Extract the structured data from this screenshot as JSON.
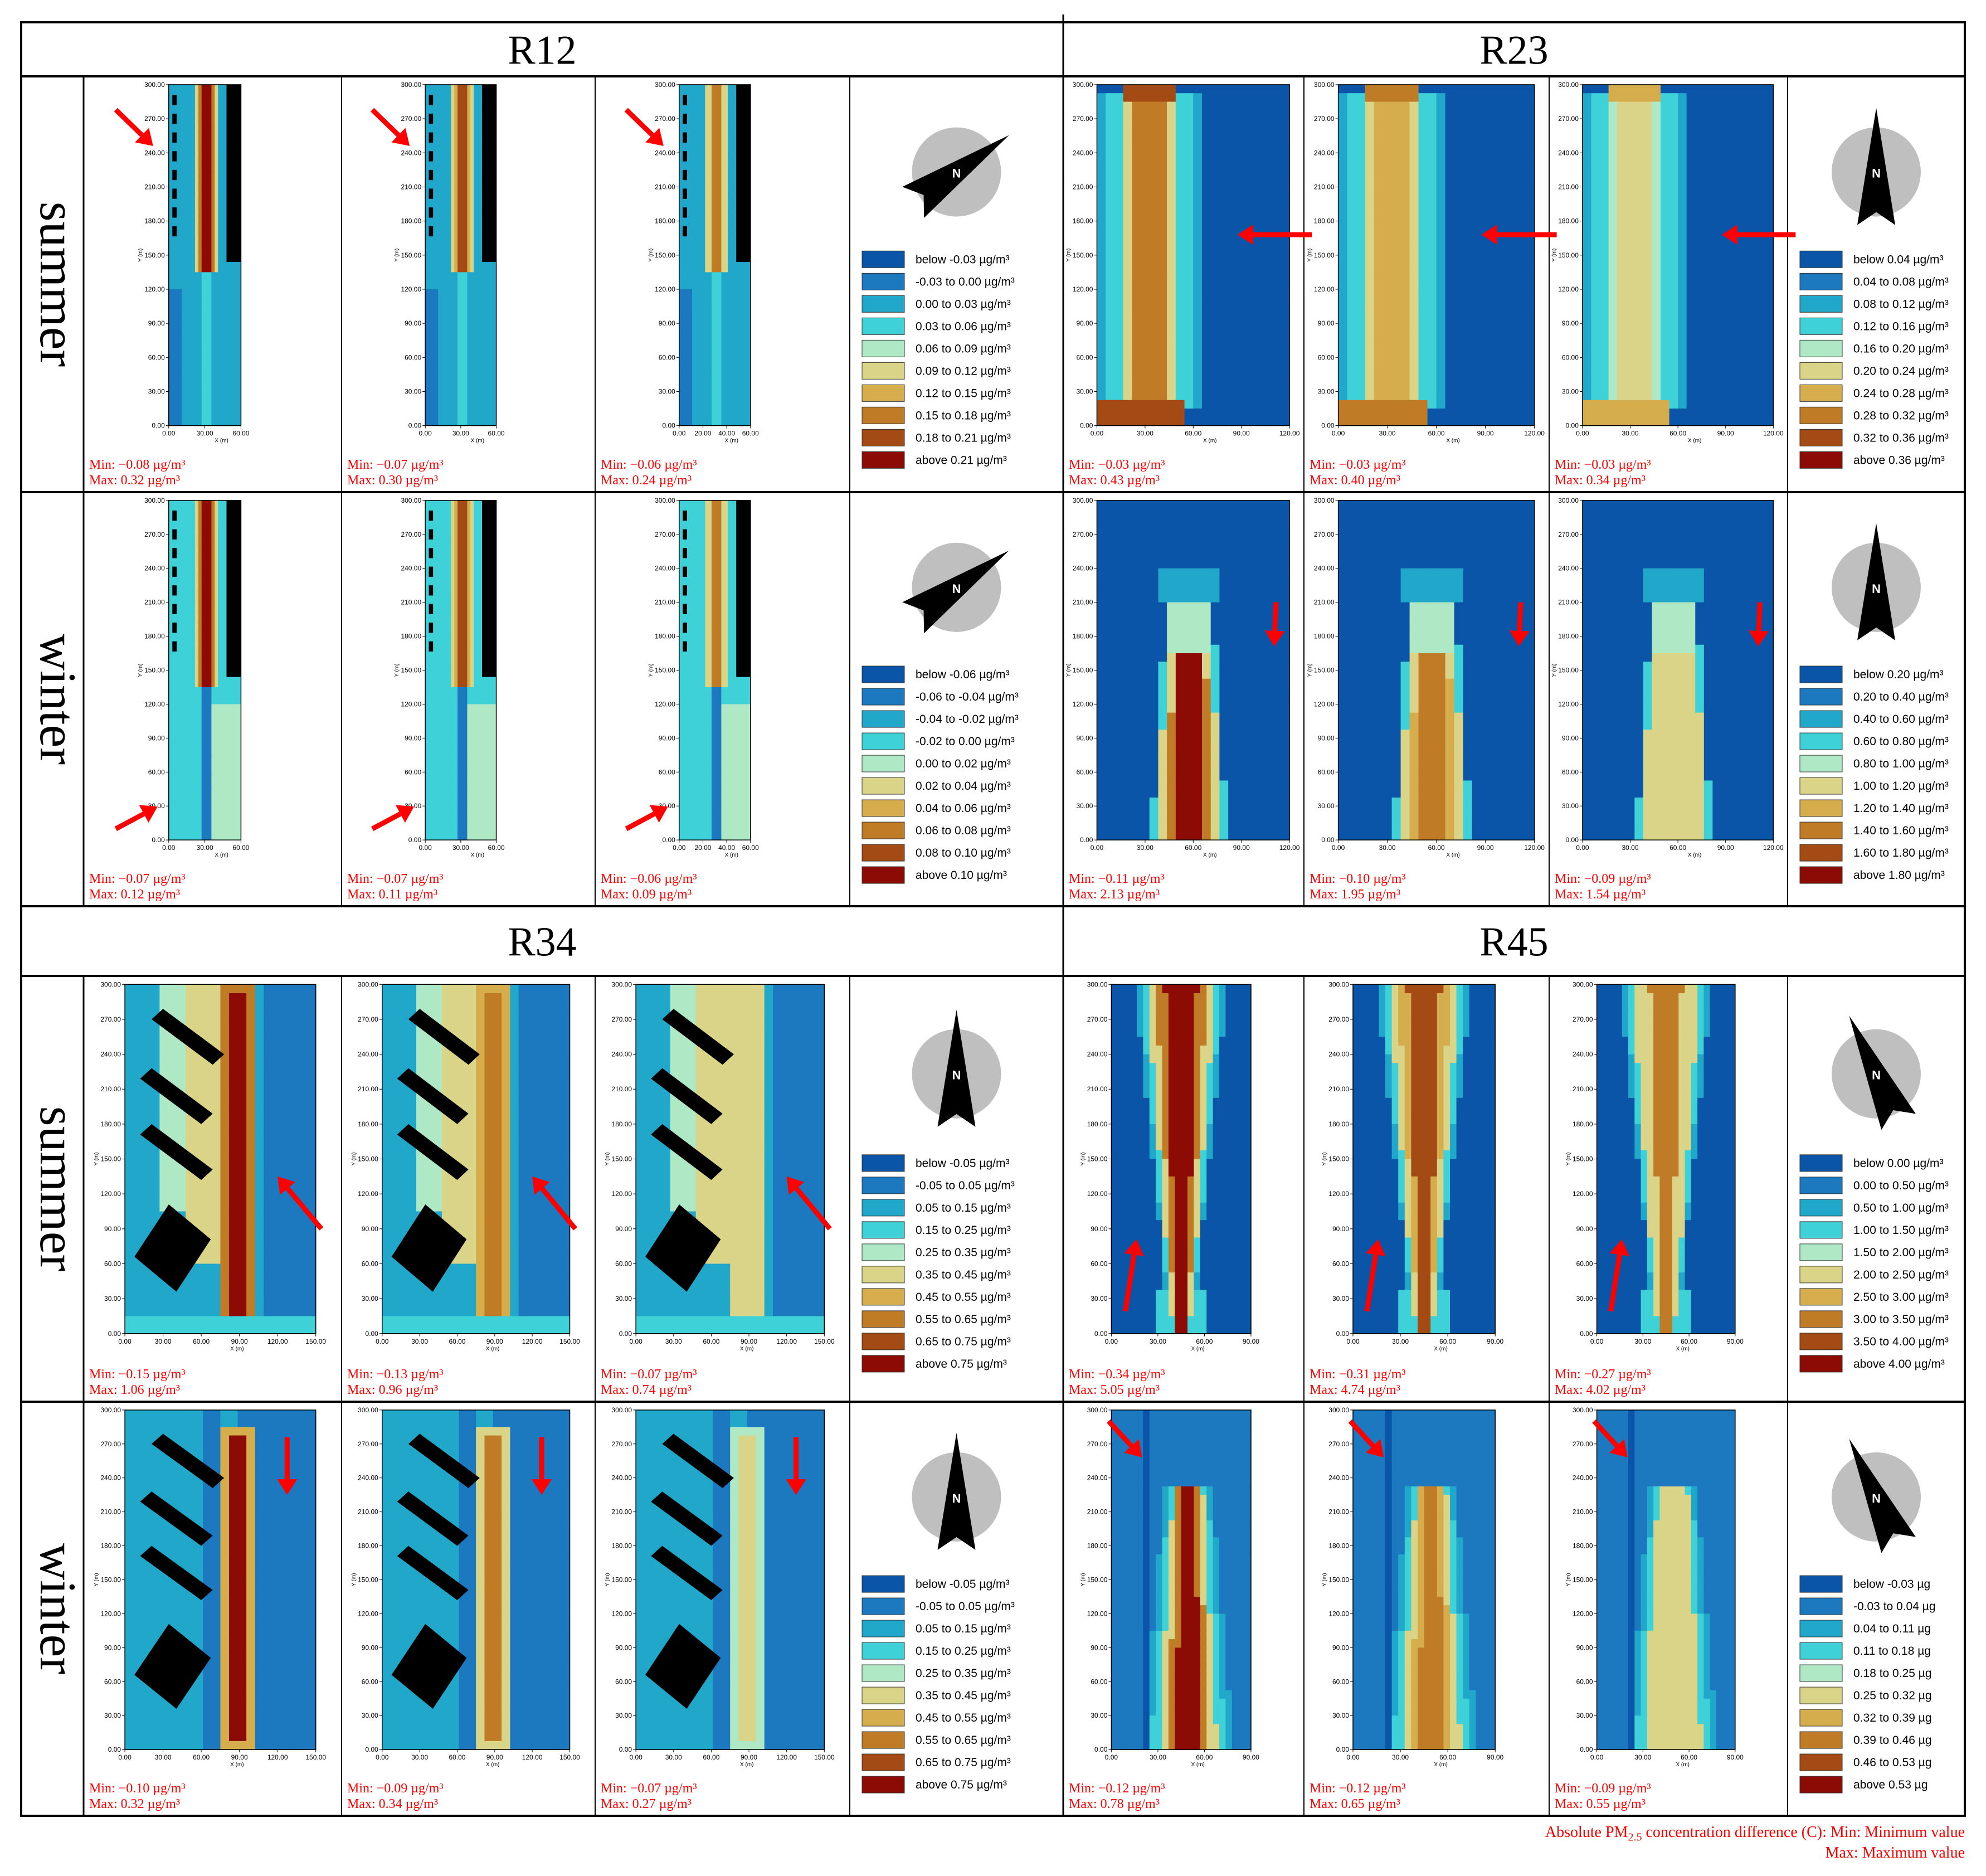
{
  "colors": {
    "line": "#000000",
    "stat_text": "#ff0000",
    "arrow": "#ff0000",
    "building": "#000000",
    "north_circle": "#bfbfbf",
    "scale": [
      "#0a55a8",
      "#1c78bf",
      "#20a7c9",
      "#3ed2d8",
      "#aee8c4",
      "#d9d487",
      "#d5ad4d",
      "#bf7b25",
      "#a44a14",
      "#8c0c05"
    ]
  },
  "groups": [
    {
      "title": "R12",
      "seasons": [
        {
          "label": "summer",
          "panels": [
            {
              "min": "Min: −0.08 µg/m³",
              "max": "Max: 0.32 µg/m³",
              "y_ticks": [
                "300.00",
                "270.00",
                "240.00",
                "210.00",
                "180.00",
                "150.00",
                "120.00",
                "90.00",
                "60.00",
                "30.00",
                "0.00"
              ],
              "x_ticks": [
                "0.00",
                "30.00",
                "60.00"
              ]
            },
            {
              "min": "Min: −0.07 µg/m³",
              "max": "Max: 0.30 µg/m³",
              "y_ticks": [
                "300.00",
                "270.00",
                "240.00",
                "210.00",
                "180.00",
                "150.00",
                "120.00",
                "90.00",
                "60.00",
                "30.00",
                "0.00"
              ],
              "x_ticks": [
                "0.00",
                "30.00",
                "60.00"
              ]
            },
            {
              "min": "Min: −0.06 µg/m³",
              "max": "Max: 0.24 µg/m³",
              "y_ticks": [
                "300.00",
                "270.00",
                "240.00",
                "210.00",
                "180.00",
                "150.00",
                "120.00",
                "90.00",
                "60.00",
                "30.00",
                "0.00"
              ],
              "x_ticks": [
                "0.00",
                "20.00",
                "40.00",
                "60.00"
              ]
            }
          ],
          "legend": [
            "below -0.03  µg/m³",
            "-0.03 to 0.00 µg/m³",
            "0.00 to 0.03 µg/m³",
            "0.03 to 0.06 µg/m³",
            "0.06 to 0.09 µg/m³",
            "0.09 to 0.12 µg/m³",
            "0.12 to 0.15 µg/m³",
            "0.15 to 0.18 µg/m³",
            "0.18 to 0.21 µg/m³",
            "above 0.21  µg/m³"
          ],
          "north_label": "N"
        },
        {
          "label": "winter",
          "panels": [
            {
              "min": "Min: −0.07 µg/m³",
              "max": "Max: 0.12 µg/m³",
              "y_ticks": [
                "300.00",
                "270.00",
                "240.00",
                "210.00",
                "180.00",
                "150.00",
                "120.00",
                "90.00",
                "60.00",
                "30.00",
                "0.00"
              ],
              "x_ticks": [
                "0.00",
                "30.00",
                "60.00"
              ]
            },
            {
              "min": "Min: −0.07 µg/m³",
              "max": "Max: 0.11 µg/m³",
              "y_ticks": [
                "300.00",
                "270.00",
                "240.00",
                "210.00",
                "180.00",
                "150.00",
                "120.00",
                "90.00",
                "60.00",
                "30.00",
                "0.00"
              ],
              "x_ticks": [
                "0.00",
                "30.00",
                "60.00"
              ]
            },
            {
              "min": "Min: −0.06 µg/m³",
              "max": "Max: 0.09 µg/m³",
              "y_ticks": [
                "300.00",
                "270.00",
                "240.00",
                "210.00",
                "180.00",
                "150.00",
                "120.00",
                "90.00",
                "60.00",
                "30.00",
                "0.00"
              ],
              "x_ticks": [
                "0.00",
                "20.00",
                "40.00",
                "60.00"
              ]
            }
          ],
          "legend": [
            "below -0.06 µg/m³",
            "-0.06 to -0.04 µg/m³",
            "-0.04 to -0.02 µg/m³",
            "-0.02 to 0.00 µg/m³",
            "0.00 to 0.02 µg/m³",
            "0.02 to 0.04 µg/m³",
            "0.04 to 0.06 µg/m³",
            "0.06 to 0.08 µg/m³",
            "0.08 to 0.10 µg/m³",
            "above 0.10 µg/m³"
          ],
          "north_label": "N"
        }
      ]
    },
    {
      "title": "R23",
      "seasons": [
        {
          "label": "summer",
          "panels": [
            {
              "min": "Min: −0.03 µg/m³",
              "max": "Max: 0.43 µg/m³",
              "y_ticks": [
                "300.00",
                "270.00",
                "240.00",
                "210.00",
                "180.00",
                "150.00",
                "120.00",
                "90.00",
                "60.00",
                "30.00",
                "0.00"
              ],
              "x_ticks": [
                "0.00",
                "30.00",
                "60.00",
                "90.00",
                "120.00"
              ]
            },
            {
              "min": "Min: −0.03 µg/m³",
              "max": "Max: 0.40 µg/m³",
              "y_ticks": [
                "300.00",
                "270.00",
                "240.00",
                "210.00",
                "180.00",
                "150.00",
                "120.00",
                "90.00",
                "60.00",
                "30.00",
                "0.00"
              ],
              "x_ticks": [
                "0.00",
                "30.00",
                "60.00",
                "90.00",
                "120.00"
              ]
            },
            {
              "min": "Min: −0.03 µg/m³",
              "max": "Max: 0.34 µg/m³",
              "y_ticks": [
                "300.00",
                "270.00",
                "240.00",
                "210.00",
                "180.00",
                "150.00",
                "120.00",
                "90.00",
                "60.00",
                "30.00",
                "0.00"
              ],
              "x_ticks": [
                "0.00",
                "30.00",
                "60.00",
                "90.00",
                "120.00"
              ]
            }
          ],
          "legend": [
            "below 0.04 µg/m³",
            "0.04 to 0.08 µg/m³",
            "0.08 to 0.12 µg/m³",
            "0.12 to 0.16 µg/m³",
            "0.16 to 0.20 µg/m³",
            "0.20 to 0.24 µg/m³",
            "0.24 to 0.28 µg/m³",
            "0.28 to 0.32 µg/m³",
            "0.32 to 0.36 µg/m³",
            "above 0.36 µg/m³"
          ],
          "north_label": "N"
        },
        {
          "label": "winter",
          "panels": [
            {
              "min": "Min: −0.11 µg/m³",
              "max": "Max: 2.13 µg/m³",
              "y_ticks": [
                "300.00",
                "270.00",
                "240.00",
                "210.00",
                "180.00",
                "150.00",
                "120.00",
                "90.00",
                "60.00",
                "30.00",
                "0.00"
              ],
              "x_ticks": [
                "0.00",
                "30.00",
                "60.00",
                "90.00",
                "120.00"
              ]
            },
            {
              "min": "Min: −0.10 µg/m³",
              "max": "Max: 1.95 µg/m³",
              "y_ticks": [
                "300.00",
                "270.00",
                "240.00",
                "210.00",
                "180.00",
                "150.00",
                "120.00",
                "90.00",
                "60.00",
                "30.00",
                "0.00"
              ],
              "x_ticks": [
                "0.00",
                "30.00",
                "60.00",
                "90.00",
                "120.00"
              ]
            },
            {
              "min": "Min: −0.09 µg/m³",
              "max": "Max: 1.54 µg/m³",
              "y_ticks": [
                "300.00",
                "270.00",
                "240.00",
                "210.00",
                "180.00",
                "150.00",
                "120.00",
                "90.00",
                "60.00",
                "30.00",
                "0.00"
              ],
              "x_ticks": [
                "0.00",
                "30.00",
                "60.00",
                "90.00",
                "120.00"
              ]
            }
          ],
          "legend": [
            "below 0.20 µg/m³",
            "0.20 to 0.40 µg/m³",
            "0.40 to 0.60 µg/m³",
            "0.60 to 0.80 µg/m³",
            "0.80 to 1.00 µg/m³",
            "1.00 to 1.20 µg/m³",
            "1.20 to 1.40 µg/m³",
            "1.40 to 1.60 µg/m³",
            "1.60 to 1.80 µg/m³",
            "above 1.80 µg/m³"
          ],
          "north_label": "N"
        }
      ]
    },
    {
      "title": "R34",
      "seasons": [
        {
          "label": "summer",
          "panels": [
            {
              "min": "Min: −0.15 µg/m³",
              "max": "Max: 1.06 µg/m³",
              "y_ticks": [
                "300.00",
                "270.00",
                "240.00",
                "210.00",
                "180.00",
                "150.00",
                "120.00",
                "90.00",
                "60.00",
                "30.00",
                "0.00"
              ],
              "x_ticks": [
                "0.00",
                "30.00",
                "60.00",
                "90.00",
                "120.00",
                "150.00"
              ]
            },
            {
              "min": "Min: −0.13 µg/m³",
              "max": "Max: 0.96 µg/m³",
              "y_ticks": [
                "300.00",
                "270.00",
                "240.00",
                "210.00",
                "180.00",
                "150.00",
                "120.00",
                "90.00",
                "60.00",
                "30.00",
                "0.00"
              ],
              "x_ticks": [
                "0.00",
                "30.00",
                "60.00",
                "90.00",
                "120.00",
                "150.00"
              ]
            },
            {
              "min": "Min: −0.07 µg/m³",
              "max": "Max: 0.74 µg/m³",
              "y_ticks": [
                "300.00",
                "270.00",
                "240.00",
                "210.00",
                "180.00",
                "150.00",
                "120.00",
                "90.00",
                "60.00",
                "30.00",
                "0.00"
              ],
              "x_ticks": [
                "0.00",
                "30.00",
                "60.00",
                "90.00",
                "120.00",
                "150.00"
              ]
            }
          ],
          "legend": [
            "below -0.05 µg/m³",
            "-0.05 to 0.05 µg/m³",
            "0.05 to 0.15 µg/m³",
            "0.15 to 0.25 µg/m³",
            "0.25 to 0.35 µg/m³",
            "0.35 to 0.45 µg/m³",
            "0.45 to 0.55 µg/m³",
            "0.55 to 0.65 µg/m³",
            "0.65 to 0.75 µg/m³",
            "above 0.75 µg/m³"
          ],
          "north_label": "N"
        },
        {
          "label": "winter",
          "panels": [
            {
              "min": "Min: −0.10 µg/m³",
              "max": "Max: 0.32 µg/m³",
              "y_ticks": [
                "300.00",
                "270.00",
                "240.00",
                "210.00",
                "180.00",
                "150.00",
                "120.00",
                "90.00",
                "60.00",
                "30.00",
                "0.00"
              ],
              "x_ticks": [
                "0.00",
                "30.00",
                "60.00",
                "90.00",
                "120.00",
                "150.00"
              ]
            },
            {
              "min": "Min: −0.09 µg/m³",
              "max": "Max: 0.34 µg/m³",
              "y_ticks": [
                "300.00",
                "270.00",
                "240.00",
                "210.00",
                "180.00",
                "150.00",
                "120.00",
                "90.00",
                "60.00",
                "30.00",
                "0.00"
              ],
              "x_ticks": [
                "0.00",
                "30.00",
                "60.00",
                "90.00",
                "120.00",
                "150.00"
              ]
            },
            {
              "min": "Min: −0.07 µg/m³",
              "max": "Max: 0.27 µg/m³",
              "y_ticks": [
                "300.00",
                "270.00",
                "240.00",
                "210.00",
                "180.00",
                "150.00",
                "120.00",
                "90.00",
                "60.00",
                "30.00",
                "0.00"
              ],
              "x_ticks": [
                "0.00",
                "30.00",
                "60.00",
                "90.00",
                "120.00",
                "150.00"
              ]
            }
          ],
          "legend": [
            "below -0.05 µg/m³",
            "-0.05 to 0.05 µg/m³",
            "0.05 to 0.15 µg/m³",
            "0.15 to 0.25 µg/m³",
            "0.25 to 0.35 µg/m³",
            "0.35 to 0.45 µg/m³",
            "0.45 to 0.55 µg/m³",
            "0.55 to 0.65 µg/m³",
            "0.65 to 0.75 µg/m³",
            "above 0.75 µg/m³"
          ],
          "north_label": "N"
        }
      ]
    },
    {
      "title": "R45",
      "seasons": [
        {
          "label": "summer",
          "panels": [
            {
              "min": "Min: −0.34 µg/m³",
              "max": "Max: 5.05 µg/m³",
              "y_ticks": [
                "300.00",
                "270.00",
                "240.00",
                "210.00",
                "180.00",
                "150.00",
                "120.00",
                "90.00",
                "60.00",
                "30.00",
                "0.00"
              ],
              "x_ticks": [
                "0.00",
                "30.00",
                "60.00",
                "90.00"
              ]
            },
            {
              "min": "Min: −0.31 µg/m³",
              "max": "Max: 4.74 µg/m³",
              "y_ticks": [
                "300.00",
                "270.00",
                "240.00",
                "210.00",
                "180.00",
                "150.00",
                "120.00",
                "90.00",
                "60.00",
                "30.00",
                "0.00"
              ],
              "x_ticks": [
                "0.00",
                "30.00",
                "60.00",
                "90.00"
              ]
            },
            {
              "min": "Min: −0.27 µg/m³",
              "max": "Max: 4.02 µg/m³",
              "y_ticks": [
                "300.00",
                "270.00",
                "240.00",
                "210.00",
                "180.00",
                "150.00",
                "120.00",
                "90.00",
                "60.00",
                "30.00",
                "0.00"
              ],
              "x_ticks": [
                "0.00",
                "30.00",
                "60.00",
                "90.00"
              ]
            }
          ],
          "legend": [
            "below 0.00 µg/m³",
            "0.00 to 0.50 µg/m³",
            "0.50 to 1.00 µg/m³",
            "1.00 to 1.50 µg/m³",
            "1.50 to 2.00 µg/m³",
            "2.00 to 2.50 µg/m³",
            "2.50 to 3.00 µg/m³",
            "3.00 to 3.50 µg/m³",
            "3.50 to 4.00 µg/m³",
            "above 4.00 µg/m³"
          ],
          "north_label": "N"
        },
        {
          "label": "winter",
          "panels": [
            {
              "min": "Min: −0.12 µg/m³",
              "max": "Max: 0.78 µg/m³",
              "y_ticks": [
                "300.00",
                "270.00",
                "240.00",
                "210.00",
                "180.00",
                "150.00",
                "120.00",
                "90.00",
                "60.00",
                "30.00",
                "0.00"
              ],
              "x_ticks": [
                "0.00",
                "30.00",
                "60.00",
                "90.00"
              ]
            },
            {
              "min": "Min: −0.12 µg/m³",
              "max": "Max: 0.65 µg/m³",
              "y_ticks": [
                "300.00",
                "270.00",
                "240.00",
                "210.00",
                "180.00",
                "150.00",
                "120.00",
                "90.00",
                "60.00",
                "30.00",
                "0.00"
              ],
              "x_ticks": [
                "0.00",
                "30.00",
                "60.00",
                "90.00"
              ]
            },
            {
              "min": "Min: −0.09 µg/m³",
              "max": "Max: 0.55 µg/m³",
              "y_ticks": [
                "300.00",
                "270.00",
                "240.00",
                "210.00",
                "180.00",
                "150.00",
                "120.00",
                "90.00",
                "60.00",
                "30.00",
                "0.00"
              ],
              "x_ticks": [
                "0.00",
                "30.00",
                "60.00",
                "90.00"
              ]
            }
          ],
          "legend": [
            "below -0.03 µg",
            "-0.03 to 0.04 µg",
            "0.04 to 0.11 µg",
            "0.11 to 0.18 µg",
            "0.18 to 0.25 µg",
            "0.25 to 0.32 µg",
            "0.32 to 0.39 µg",
            "0.39 to 0.46 µg",
            "0.46 to 0.53 µg",
            "above 0.53 µg"
          ],
          "north_label": "N"
        }
      ]
    }
  ],
  "axis": {
    "y_label": "Y (m)",
    "x_label": "X (m)"
  },
  "footnote": {
    "line1_prefix": "Absolute PM",
    "line1_sub": "2.5",
    "line1_suffix": " concentration difference (C): Min: Minimum value",
    "line2": "Max: Maximum value"
  }
}
